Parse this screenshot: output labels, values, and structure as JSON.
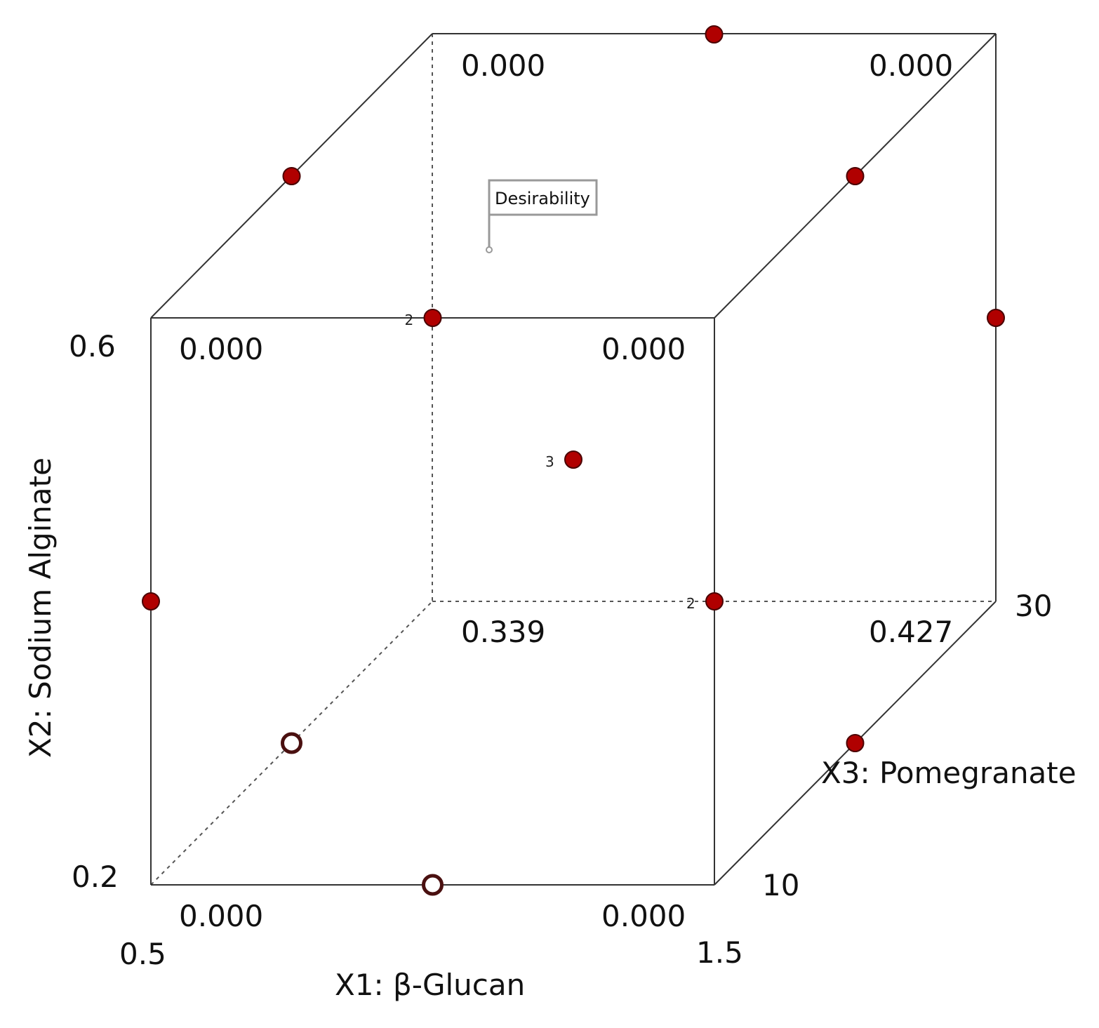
{
  "chart_data": {
    "type": "scatter",
    "response": "Desirability",
    "axes": {
      "x1": {
        "label": "X1: β-Glucan",
        "min_label": "0.5",
        "max_label": "1.5",
        "min": 0.5,
        "max": 1.5
      },
      "x2": {
        "label": "X2: Sodium Alginate",
        "min_label": "0.2",
        "max_label": "0.6",
        "min": 0.2,
        "max": 0.6
      },
      "x3": {
        "label": "X3: Pomegranate",
        "min_label": "10",
        "max_label": "30",
        "min": 10,
        "max": 30
      }
    },
    "corner_values": [
      {
        "x1": 0.5,
        "x2": 0.2,
        "x3": 10,
        "value": "0.000"
      },
      {
        "x1": 1.5,
        "x2": 0.2,
        "x3": 10,
        "value": "0.000"
      },
      {
        "x1": 0.5,
        "x2": 0.6,
        "x3": 10,
        "value": "0.000"
      },
      {
        "x1": 1.5,
        "x2": 0.6,
        "x3": 10,
        "value": "0.000"
      },
      {
        "x1": 0.5,
        "x2": 0.2,
        "x3": 30,
        "value": "0.339"
      },
      {
        "x1": 1.5,
        "x2": 0.2,
        "x3": 30,
        "value": "0.427"
      },
      {
        "x1": 0.5,
        "x2": 0.6,
        "x3": 30,
        "value": "0.000"
      },
      {
        "x1": 1.5,
        "x2": 0.6,
        "x3": 30,
        "value": "0.000"
      }
    ],
    "design_points": [
      {
        "x1": 1.0,
        "x2": 0.6,
        "x3": 30,
        "filled": true,
        "count": ""
      },
      {
        "x1": 0.5,
        "x2": 0.6,
        "x3": 20,
        "filled": true,
        "count": ""
      },
      {
        "x1": 1.5,
        "x2": 0.6,
        "x3": 20,
        "filled": true,
        "count": ""
      },
      {
        "x1": 1.0,
        "x2": 0.6,
        "x3": 10,
        "filled": true,
        "count": "2"
      },
      {
        "x1": 1.5,
        "x2": 0.4,
        "x3": 30,
        "filled": true,
        "count": ""
      },
      {
        "x1": 0.5,
        "x2": 0.4,
        "x3": 10,
        "filled": true,
        "count": ""
      },
      {
        "x1": 1.0,
        "x2": 0.4,
        "x3": 20,
        "filled": true,
        "count": "3"
      },
      {
        "x1": 1.5,
        "x2": 0.4,
        "x3": 10,
        "filled": true,
        "count": "2"
      },
      {
        "x1": 1.5,
        "x2": 0.2,
        "x3": 20,
        "filled": true,
        "count": ""
      },
      {
        "x1": 0.5,
        "x2": 0.2,
        "x3": 20,
        "filled": false,
        "count": ""
      },
      {
        "x1": 1.0,
        "x2": 0.2,
        "x3": 10,
        "filled": false,
        "count": ""
      }
    ],
    "point_color": "#b00000",
    "point_stroke": "#4a0000",
    "hollow_stroke": "#4a1010"
  }
}
